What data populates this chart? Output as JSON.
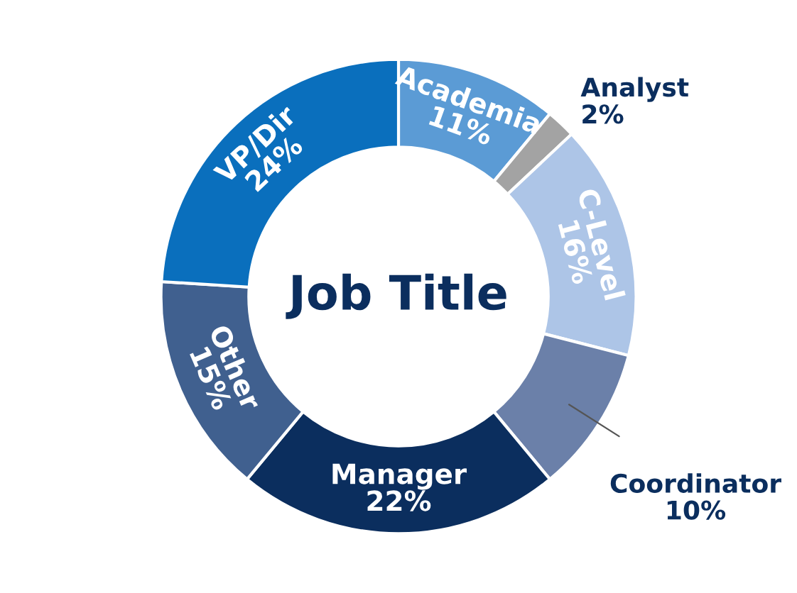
{
  "chart_data": {
    "type": "donut",
    "title": "Job Title",
    "categories": [
      "Academia",
      "Analyst",
      "C-Level",
      "Coordinator",
      "Manager",
      "Other",
      "VP/Dir"
    ],
    "values": [
      11,
      2,
      16,
      10,
      22,
      15,
      24
    ],
    "value_labels": [
      "11%",
      "2%",
      "16%",
      "10%",
      "22%",
      "15%",
      "24%"
    ],
    "colors": [
      "#5b9bd5",
      "#a3a3a3",
      "#adc5e7",
      "#6b80a9",
      "#0b2e5e",
      "#40608f",
      "#0a6fbd"
    ],
    "legend": false
  }
}
